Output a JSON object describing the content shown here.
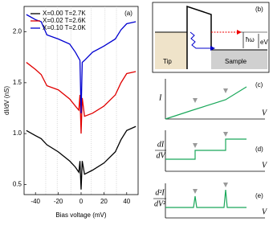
{
  "chart_data": {
    "type": "line",
    "panel_label": "(a)",
    "x_label": "Bias voltage (mV)",
    "y_label": "dI/dV (nS)",
    "x": [
      -48,
      -40,
      -35,
      -30,
      -20,
      -10,
      -5,
      -2,
      -1,
      0,
      1,
      3,
      10,
      20,
      30,
      35,
      40,
      48
    ],
    "series": [
      {
        "name": "X=0.00 T=2.7K",
        "color": "#000000",
        "values": [
          1.03,
          0.98,
          0.95,
          0.89,
          0.82,
          0.73,
          0.67,
          0.62,
          0.73,
          0.45,
          0.73,
          0.6,
          0.64,
          0.71,
          0.82,
          0.94,
          1.03,
          1.07
        ]
      },
      {
        "name": "X=0.02 T=2.6K",
        "color": "#e00000",
        "values": [
          1.7,
          1.63,
          1.58,
          1.47,
          1.43,
          1.34,
          1.27,
          1.23,
          1.38,
          1.0,
          1.35,
          1.17,
          1.2,
          1.27,
          1.38,
          1.5,
          1.59,
          1.61
        ]
      },
      {
        "name": "X=0.10 T=2.0K",
        "color": "#0000d0",
        "values": [
          2.17,
          2.12,
          2.1,
          1.97,
          1.93,
          1.88,
          1.8,
          1.74,
          1.72,
          1.2,
          1.7,
          1.72,
          1.8,
          1.86,
          1.93,
          2.02,
          2.08,
          2.1
        ]
      }
    ],
    "reference_lines": [
      -31,
      -21,
      -9,
      9,
      21,
      31
    ],
    "xlim": [
      -50,
      50
    ],
    "xticks": [
      -40,
      -20,
      0,
      20,
      40
    ],
    "ylim": [
      0.4,
      2.25
    ],
    "yticks": [
      0.5,
      {
        "value": 1.0,
        "label": "1.0"
      },
      1.5,
      {
        "value": 2.0,
        "label": "2.0"
      }
    ],
    "legend": "upper left"
  },
  "schematics": {
    "b": {
      "label": "(b)",
      "phonon": "ħω",
      "bias": "eV",
      "tip": "Tip",
      "sample": "Sample"
    },
    "c": {
      "label": "(c)",
      "y_label": "I",
      "x_label": "V"
    },
    "d": {
      "label": "(d)",
      "y_num": "dI",
      "y_den": "dV",
      "x_label": "V"
    },
    "e": {
      "label": "(e)",
      "y_num": "d²I",
      "y_den": "dV²",
      "x_label": "V"
    }
  }
}
